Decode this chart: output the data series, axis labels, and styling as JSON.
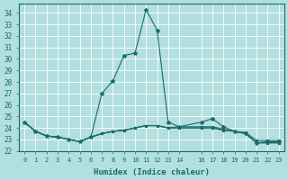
{
  "background_color": "#b2dfdf",
  "line_color": "#1a6b6b",
  "grid_color": "#ffffff",
  "xlabel": "Humidex (Indice chaleur)",
  "xlim": [
    -0.5,
    23.5
  ],
  "ylim": [
    22,
    34.8
  ],
  "yticks": [
    22,
    23,
    24,
    25,
    26,
    27,
    28,
    29,
    30,
    31,
    32,
    33,
    34
  ],
  "xtick_positions": [
    0,
    1,
    2,
    3,
    4,
    5,
    6,
    7,
    8,
    9,
    10,
    11,
    12,
    13,
    14,
    16,
    17,
    18,
    19,
    20,
    21,
    22,
    23
  ],
  "xtick_labels": [
    "0",
    "1",
    "2",
    "3",
    "4",
    "5",
    "6",
    "7",
    "8",
    "9",
    "10",
    "11",
    "12",
    "13",
    "14",
    "16",
    "17",
    "18",
    "19",
    "20",
    "21",
    "22",
    "23"
  ],
  "curves": [
    {
      "x": [
        0,
        1,
        2,
        3,
        4,
        5,
        6,
        7,
        8,
        9,
        10,
        11,
        12,
        13,
        14,
        16,
        17,
        18,
        19,
        20,
        21,
        22,
        23
      ],
      "y": [
        24.5,
        23.7,
        23.3,
        23.2,
        23.0,
        22.8,
        23.2,
        27.0,
        28.1,
        30.3,
        30.5,
        34.3,
        32.5,
        24.5,
        24.1,
        24.5,
        24.8,
        24.1,
        23.7,
        23.5,
        22.7,
        22.8,
        22.8
      ]
    },
    {
      "x": [
        0,
        1,
        2,
        3,
        4,
        5,
        6,
        7,
        8,
        9,
        10,
        11,
        12,
        13,
        14,
        16,
        17,
        18,
        19,
        20,
        21,
        22,
        23
      ],
      "y": [
        24.5,
        23.7,
        23.3,
        23.2,
        23.0,
        22.8,
        23.2,
        23.5,
        23.7,
        23.8,
        24.0,
        24.2,
        24.2,
        24.0,
        24.1,
        24.1,
        24.1,
        23.9,
        23.7,
        23.6,
        22.9,
        22.9,
        22.9
      ]
    },
    {
      "x": [
        0,
        1,
        2,
        3,
        4,
        5,
        6,
        7,
        8,
        9,
        10,
        11,
        12,
        13,
        14,
        16,
        17,
        18,
        19,
        20,
        21,
        22,
        23
      ],
      "y": [
        24.5,
        23.7,
        23.3,
        23.2,
        23.0,
        22.8,
        23.2,
        23.5,
        23.7,
        23.8,
        24.0,
        24.2,
        24.2,
        24.0,
        24.0,
        24.0,
        24.0,
        23.8,
        23.7,
        23.5,
        22.7,
        22.7,
        22.7
      ]
    },
    {
      "x": [
        0,
        1,
        2,
        3,
        4,
        5,
        6,
        7,
        8,
        9,
        10,
        11,
        12,
        13,
        14,
        16,
        17,
        18,
        19,
        20,
        21,
        22,
        23
      ],
      "y": [
        24.5,
        23.7,
        23.3,
        23.2,
        23.0,
        22.8,
        23.2,
        23.5,
        23.7,
        23.8,
        24.0,
        24.2,
        24.2,
        24.0,
        24.0,
        24.0,
        24.0,
        23.8,
        23.7,
        23.5,
        22.7,
        22.7,
        22.7
      ]
    }
  ]
}
